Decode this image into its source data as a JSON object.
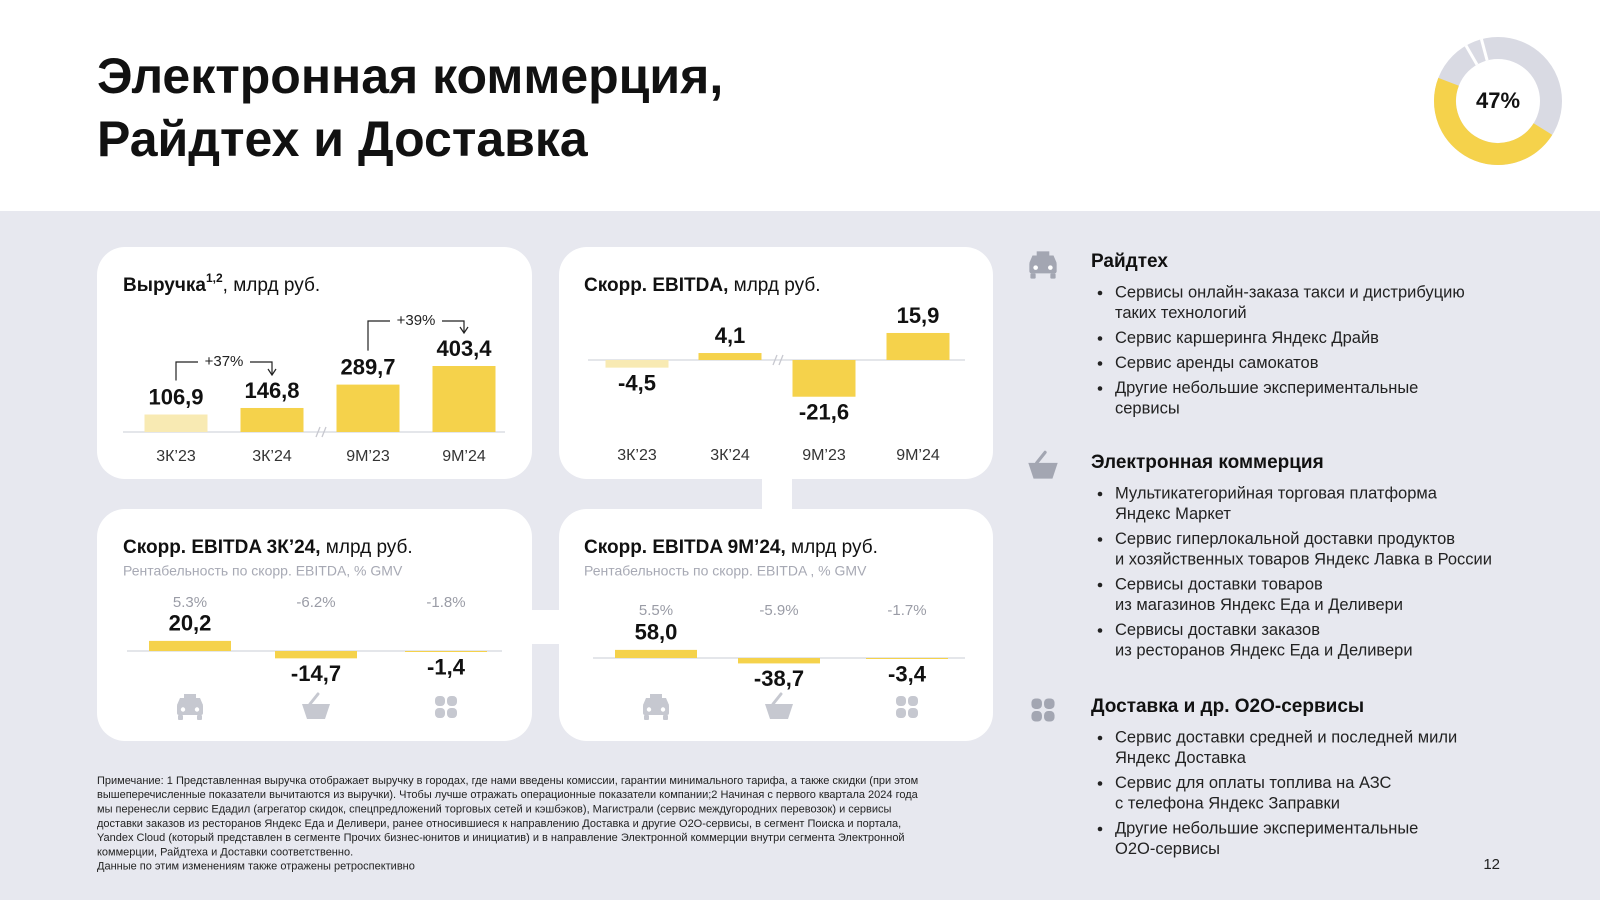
{
  "title": [
    "Электронная коммерция,",
    "Райдтех и Доставка"
  ],
  "chart_data": [
    {
      "type": "donut",
      "values": [
        47
      ],
      "value_labels": [
        "47%"
      ],
      "color": "#f5d24b",
      "rest_color": "#d9dae3"
    },
    {
      "type": "bar",
      "title": "Выручка",
      "title_sup": "1,2",
      "title_unit": ", млрд руб.",
      "categories": [
        "3К’23",
        "3К’24",
        "9М’23",
        "9М’24"
      ],
      "values": [
        106.9,
        146.8,
        289.7,
        403.4
      ],
      "value_labels": [
        "106,9",
        "146,8",
        "289,7",
        "403,4"
      ],
      "colors": [
        "#f8eab3",
        "#f5d24b",
        "#f5d24b",
        "#f5d24b"
      ],
      "annotations": [
        "+37%",
        "+39%"
      ]
    },
    {
      "type": "bar",
      "title": "Скорр. EBITDA,",
      "title_unit": " млрд руб.",
      "categories": [
        "3К’23",
        "3К’24",
        "9М’23",
        "9М’24"
      ],
      "values": [
        -4.5,
        4.1,
        -21.6,
        15.9
      ],
      "value_labels": [
        "-4,5",
        "4,1",
        "-21,6",
        "15,9"
      ],
      "colors": [
        "#f8eab3",
        "#f5d24b",
        "#f5d24b",
        "#f5d24b"
      ]
    },
    {
      "type": "bar",
      "title": "Скорр. EBITDA 3К’24,",
      "title_unit": " млрд руб.",
      "subtitle": "Рентабельность по скорр. EBITDA, % GMV",
      "categories": [
        null,
        null,
        null
      ],
      "values": [
        20.2,
        -14.7,
        -1.4
      ],
      "value_labels": [
        "20,2",
        "-14,7",
        "-1,4"
      ],
      "margin_labels": [
        "5.3%",
        "-6.2%",
        "-1.8%"
      ],
      "color": "#f5d24b"
    },
    {
      "type": "bar",
      "title": "Скорр. EBITDA 9М’24,",
      "title_unit": " млрд руб.",
      "subtitle": "Рентабельность по скорр. EBITDA , % GMV",
      "categories": [
        null,
        null,
        null
      ],
      "values": [
        58.0,
        -38.7,
        -3.4
      ],
      "value_labels": [
        "58,0",
        "-38,7",
        "-3,4"
      ],
      "margin_labels": [
        "5.5%",
        "-5.9%",
        "-1.7%"
      ],
      "color": "#f5d24b"
    }
  ],
  "segments": [
    {
      "heading": "Райдтех",
      "items": [
        [
          "Сервисы онлайн-заказа такси и дистрибуцию",
          "таких технологий"
        ],
        [
          "Сервис каршеринга Яндекс Драйв"
        ],
        [
          "Сервис аренды самокатов"
        ],
        [
          "Другие небольшие экспериментальные",
          "сервисы"
        ]
      ]
    },
    {
      "heading": "Электронная коммерция",
      "items": [
        [
          "Мультикатегорийная торговая платформа",
          "Яндекс Маркет"
        ],
        [
          "Сервис гиперлокальной доставки продуктов",
          "и хозяйственных товаров Яндекс Лавка в России"
        ],
        [
          "Сервисы доставки товаров",
          "из магазинов Яндекс Еда и Деливери"
        ],
        [
          "Сервисы доставки заказов",
          "из ресторанов Яндекс Еда и Деливери"
        ]
      ]
    },
    {
      "heading": "Доставка и др. О2О-сервисы",
      "items": [
        [
          "Сервис доставки средней и последней мили",
          "Яндекс Доставка"
        ],
        [
          "Сервис для оплаты топлива на АЗС",
          "с телефона Яндекс Заправки"
        ],
        [
          "Другие небольшие экспериментальные",
          "О2О-сервисы"
        ]
      ]
    }
  ],
  "footnote": [
    "Примечание: 1 Представленная выручка отображает выручку в городах, где нами введены комиссии, гарантии минимального тарифа, а также скидки (при этом",
    "вышеперечисленные показатели вычитаются из выручки). Чтобы лучше отражать операционные показатели компании;2 Начиная с первого квартала 2024 года",
    "мы перенесли сервис Едадил (агрегатор скидок, спецпредложений торговых сетей и кэшбэков), Магистрали (сервис междугородних перевозок) и сервисы",
    "доставки заказов из ресторанов Яндекс Еда и Деливери, ранее относившиеся к направлению Доставка и другие О2О-сервисы, в сегмент Поиска и портала,",
    "Yandex Cloud (который представлен в сегменте Прочих бизнес-юнитов и инициатив)  и в направление Электронной коммерции внутри сегмента Электронной",
    "коммерции, Райдтеха и Доставки соответственно.",
    "Данные по этим изменениям также отражены ретроспективно"
  ],
  "page_number": "12"
}
